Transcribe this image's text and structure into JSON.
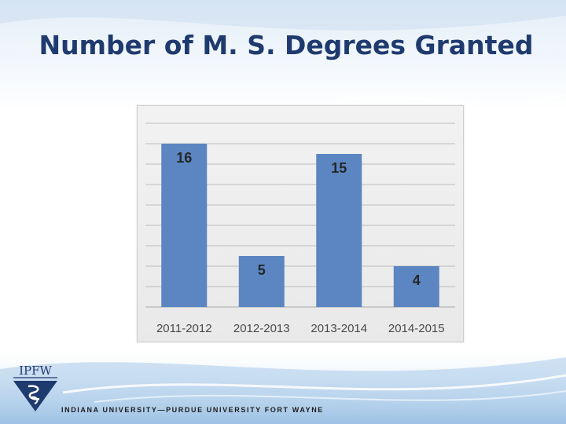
{
  "slide": {
    "title": "Number of M. S. Degrees Granted",
    "logo_text": "IPFW",
    "footer": "INDIANA UNIVERSITY—PURDUE UNIVERSITY FORT WAYNE"
  },
  "colors": {
    "bar": "#5b86c2",
    "title": "#1f3a6e",
    "grid": "#bdbdbd",
    "label": "#262626"
  },
  "chart_data": {
    "type": "bar",
    "categories": [
      "2011-2012",
      "2012-2013",
      "2013-2014",
      "2014-2015"
    ],
    "values": [
      16,
      5,
      15,
      4
    ],
    "ylim": [
      0,
      18
    ],
    "grid": true,
    "data_labels": true,
    "legend": "none"
  }
}
